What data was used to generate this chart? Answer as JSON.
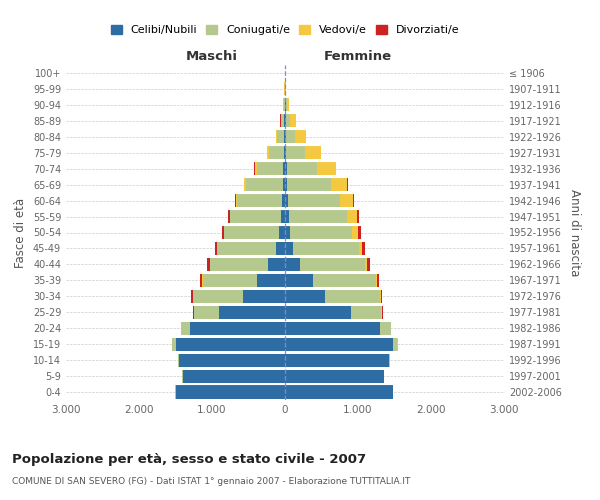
{
  "age_groups": [
    "0-4",
    "5-9",
    "10-14",
    "15-19",
    "20-24",
    "25-29",
    "30-34",
    "35-39",
    "40-44",
    "45-49",
    "50-54",
    "55-59",
    "60-64",
    "65-69",
    "70-74",
    "75-79",
    "80-84",
    "85-89",
    "90-94",
    "95-99",
    "100+"
  ],
  "birth_years": [
    "2002-2006",
    "1997-2001",
    "1992-1996",
    "1987-1991",
    "1982-1986",
    "1977-1981",
    "1972-1976",
    "1967-1971",
    "1962-1966",
    "1957-1961",
    "1952-1956",
    "1947-1951",
    "1942-1946",
    "1937-1941",
    "1932-1936",
    "1927-1931",
    "1922-1926",
    "1917-1921",
    "1912-1916",
    "1907-1911",
    "≤ 1906"
  ],
  "male": {
    "celibe": [
      1500,
      1400,
      1450,
      1500,
      1300,
      900,
      580,
      380,
      230,
      130,
      80,
      50,
      40,
      30,
      30,
      20,
      15,
      10,
      5,
      2,
      2
    ],
    "coniugato": [
      5,
      5,
      10,
      50,
      120,
      350,
      680,
      750,
      800,
      800,
      750,
      700,
      620,
      500,
      350,
      200,
      90,
      40,
      15,
      3,
      2
    ],
    "vedovo": [
      1,
      1,
      1,
      2,
      2,
      3,
      3,
      3,
      2,
      2,
      3,
      5,
      15,
      25,
      30,
      25,
      15,
      10,
      5,
      2,
      1
    ],
    "divorziato": [
      0,
      1,
      1,
      2,
      5,
      10,
      20,
      30,
      35,
      30,
      30,
      25,
      15,
      10,
      8,
      5,
      3,
      2,
      0,
      0,
      0
    ]
  },
  "female": {
    "nubile": [
      1480,
      1350,
      1420,
      1480,
      1300,
      900,
      550,
      380,
      200,
      110,
      70,
      50,
      35,
      28,
      25,
      18,
      15,
      12,
      8,
      3,
      2
    ],
    "coniugata": [
      5,
      5,
      12,
      60,
      150,
      420,
      750,
      860,
      900,
      900,
      850,
      800,
      720,
      600,
      420,
      250,
      120,
      60,
      20,
      5,
      2
    ],
    "vedova": [
      1,
      1,
      1,
      2,
      3,
      5,
      10,
      15,
      30,
      50,
      80,
      130,
      180,
      220,
      250,
      220,
      150,
      80,
      30,
      8,
      2
    ],
    "divorziata": [
      0,
      1,
      1,
      2,
      5,
      12,
      25,
      35,
      40,
      35,
      35,
      30,
      15,
      10,
      8,
      5,
      3,
      2,
      0,
      0,
      0
    ]
  },
  "colors": {
    "celibe": "#2E6DA4",
    "coniugato": "#B5C98E",
    "vedovo": "#F5C842",
    "divorziato": "#CC2222"
  },
  "title": "Popolazione per età, sesso e stato civile - 2007",
  "subtitle": "COMUNE DI SAN SEVERO (FG) - Dati ISTAT 1° gennaio 2007 - Elaborazione TUTTITALIA.IT",
  "xlabel_left": "Maschi",
  "xlabel_right": "Femmine",
  "ylabel_left": "Fasce di età",
  "ylabel_right": "Anni di nascita",
  "xlim": 3000,
  "xtick_labels": [
    "3.000",
    "2.000",
    "1.000",
    "0",
    "1.000",
    "2.000",
    "3.000"
  ],
  "legend_labels": [
    "Celibi/Nubili",
    "Coniugati/e",
    "Vedovi/e",
    "Divorziati/e"
  ],
  "background_color": "#ffffff",
  "grid_color": "#cccccc"
}
